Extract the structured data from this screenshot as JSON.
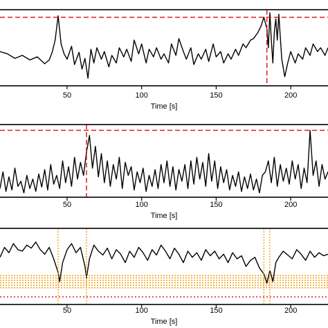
{
  "chart_data": [
    {
      "type": "line",
      "xlabel": "Time [s]",
      "xlim": [
        5,
        225
      ],
      "ylim": [
        0,
        1
      ],
      "xticks": [
        50,
        100,
        150,
        200
      ],
      "grid": false,
      "series": [
        {
          "color": "#000000",
          "x": [
            5,
            10,
            15,
            20,
            25,
            30,
            35,
            38,
            40,
            42,
            44,
            46,
            48,
            50,
            53,
            55,
            58,
            60,
            62,
            64,
            66,
            68,
            70,
            73,
            75,
            78,
            80,
            83,
            85,
            88,
            90,
            93,
            95,
            98,
            100,
            103,
            105,
            108,
            110,
            113,
            115,
            118,
            120,
            123,
            125,
            128,
            130,
            133,
            135,
            138,
            140,
            143,
            145,
            148,
            150,
            153,
            155,
            158,
            160,
            163,
            165,
            168,
            170,
            173,
            175,
            178,
            180,
            182,
            184,
            185,
            186,
            187,
            188,
            189,
            190,
            191,
            192,
            194,
            196,
            198,
            200,
            203,
            205,
            208,
            210,
            213,
            215,
            218,
            220,
            223,
            225
          ],
          "values": [
            0.45,
            0.42,
            0.36,
            0.4,
            0.34,
            0.38,
            0.29,
            0.34,
            0.44,
            0.6,
            0.92,
            0.55,
            0.42,
            0.35,
            0.52,
            0.28,
            0.44,
            0.22,
            0.36,
            0.1,
            0.48,
            0.3,
            0.5,
            0.35,
            0.45,
            0.25,
            0.4,
            0.3,
            0.5,
            0.38,
            0.48,
            0.32,
            0.6,
            0.42,
            0.55,
            0.3,
            0.48,
            0.38,
            0.5,
            0.35,
            0.42,
            0.3,
            0.55,
            0.4,
            0.62,
            0.45,
            0.35,
            0.5,
            0.28,
            0.42,
            0.35,
            0.48,
            0.32,
            0.55,
            0.38,
            0.45,
            0.3,
            0.42,
            0.35,
            0.48,
            0.4,
            0.55,
            0.5,
            0.6,
            0.62,
            0.7,
            0.78,
            0.9,
            0.75,
            0.5,
            0.96,
            0.6,
            0.3,
            0.7,
            0.88,
            0.6,
            0.94,
            0.35,
            0.12,
            0.3,
            0.45,
            0.3,
            0.42,
            0.35,
            0.5,
            0.4,
            0.55,
            0.45,
            0.5,
            0.4,
            0.5
          ]
        }
      ],
      "threshold_line": {
        "orientation": "horizontal",
        "value": 0.9,
        "color": "#e31a1c",
        "style": "dashed"
      },
      "event_lines": [
        {
          "orientation": "vertical",
          "x": 184,
          "color": "#e31a1c",
          "style": "dashed"
        }
      ]
    },
    {
      "type": "line",
      "xlabel": "Time [s]",
      "xlim": [
        5,
        225
      ],
      "ylim": [
        0,
        1
      ],
      "xticks": [
        50,
        100,
        150,
        200
      ],
      "grid": false,
      "series": [
        {
          "color": "#000000",
          "x": [
            5,
            7,
            9,
            11,
            13,
            15,
            17,
            19,
            21,
            23,
            25,
            27,
            29,
            31,
            33,
            35,
            37,
            39,
            41,
            43,
            45,
            47,
            49,
            51,
            53,
            55,
            57,
            59,
            61,
            63,
            65,
            67,
            69,
            71,
            73,
            75,
            77,
            79,
            81,
            83,
            85,
            87,
            89,
            91,
            93,
            95,
            97,
            99,
            101,
            103,
            105,
            107,
            109,
            111,
            113,
            115,
            117,
            119,
            121,
            123,
            125,
            127,
            129,
            131,
            133,
            135,
            137,
            139,
            141,
            143,
            145,
            147,
            149,
            151,
            153,
            155,
            157,
            159,
            161,
            163,
            165,
            167,
            169,
            171,
            173,
            175,
            177,
            179,
            181,
            183,
            185,
            187,
            189,
            191,
            193,
            195,
            197,
            199,
            201,
            203,
            205,
            207,
            209,
            211,
            213,
            215,
            217,
            219,
            221,
            223,
            225
          ],
          "values": [
            0.12,
            0.35,
            0.08,
            0.28,
            0.1,
            0.4,
            0.15,
            0.22,
            0.06,
            0.3,
            0.12,
            0.25,
            0.08,
            0.32,
            0.14,
            0.38,
            0.1,
            0.45,
            0.18,
            0.3,
            0.12,
            0.5,
            0.2,
            0.42,
            0.15,
            0.55,
            0.25,
            0.48,
            0.3,
            0.62,
            0.85,
            0.4,
            0.7,
            0.28,
            0.6,
            0.2,
            0.5,
            0.15,
            0.45,
            0.25,
            0.55,
            0.12,
            0.48,
            0.3,
            0.42,
            0.1,
            0.35,
            0.2,
            0.4,
            0.08,
            0.3,
            0.15,
            0.38,
            0.12,
            0.45,
            0.2,
            0.5,
            0.15,
            0.42,
            0.1,
            0.38,
            0.22,
            0.45,
            0.12,
            0.5,
            0.18,
            0.55,
            0.25,
            0.48,
            0.15,
            0.6,
            0.22,
            0.5,
            0.12,
            0.42,
            0.2,
            0.38,
            0.1,
            0.3,
            0.15,
            0.35,
            0.08,
            0.28,
            0.12,
            0.32,
            0.1,
            0.25,
            0.06,
            0.3,
            0.35,
            0.5,
            0.2,
            0.55,
            0.15,
            0.45,
            0.22,
            0.4,
            0.18,
            0.5,
            0.25,
            0.45,
            0.12,
            0.4,
            0.2,
            0.92,
            0.3,
            0.5,
            0.15,
            0.45,
            0.25,
            0.35
          ]
        }
      ],
      "threshold_line": {
        "orientation": "horizontal",
        "value": 0.92,
        "color": "#e31a1c",
        "style": "dashed"
      },
      "event_lines": [
        {
          "orientation": "vertical",
          "x": 63,
          "color": "#e31a1c",
          "style": "dashed"
        }
      ]
    },
    {
      "type": "line",
      "xlabel": "Time [s]",
      "xlim": [
        5,
        225
      ],
      "ylim": [
        0,
        1
      ],
      "xticks": [
        50,
        100,
        150,
        200
      ],
      "grid": false,
      "series": [
        {
          "color": "#000000",
          "x": [
            5,
            8,
            11,
            14,
            17,
            20,
            23,
            26,
            29,
            32,
            35,
            38,
            41,
            44,
            45,
            47,
            50,
            53,
            56,
            59,
            62,
            63,
            65,
            68,
            71,
            74,
            77,
            80,
            83,
            86,
            89,
            92,
            95,
            98,
            101,
            104,
            107,
            110,
            113,
            116,
            119,
            122,
            125,
            128,
            131,
            134,
            137,
            140,
            143,
            146,
            149,
            152,
            155,
            158,
            161,
            164,
            167,
            170,
            173,
            176,
            179,
            182,
            184,
            186,
            188,
            190,
            192,
            195,
            198,
            201,
            204,
            207,
            210,
            213,
            216,
            219,
            222,
            225
          ],
          "values": [
            0.62,
            0.75,
            0.68,
            0.8,
            0.72,
            0.7,
            0.78,
            0.74,
            0.82,
            0.72,
            0.66,
            0.75,
            0.6,
            0.42,
            0.3,
            0.55,
            0.72,
            0.8,
            0.68,
            0.75,
            0.5,
            0.35,
            0.6,
            0.78,
            0.7,
            0.65,
            0.74,
            0.6,
            0.72,
            0.66,
            0.55,
            0.7,
            0.62,
            0.75,
            0.68,
            0.58,
            0.72,
            0.65,
            0.78,
            0.7,
            0.6,
            0.74,
            0.66,
            0.55,
            0.7,
            0.62,
            0.68,
            0.58,
            0.72,
            0.64,
            0.7,
            0.6,
            0.66,
            0.55,
            0.68,
            0.6,
            0.64,
            0.5,
            0.58,
            0.62,
            0.48,
            0.4,
            0.28,
            0.45,
            0.3,
            0.55,
            0.62,
            0.7,
            0.65,
            0.6,
            0.72,
            0.66,
            0.58,
            0.7,
            0.62,
            0.68,
            0.64,
            0.66
          ]
        }
      ],
      "threshold_band": {
        "from": 0.22,
        "to": 0.38,
        "color": "#f5a623",
        "style": "dotted"
      },
      "threshold_line": {
        "orientation": "horizontal",
        "value": 0.1,
        "color": "#e31a1c",
        "style": "dotted"
      },
      "event_lines": [
        {
          "orientation": "vertical",
          "x": 44,
          "color": "#f5a623",
          "style": "dotted"
        },
        {
          "orientation": "vertical",
          "x": 63,
          "color": "#f5a623",
          "style": "dotted"
        },
        {
          "orientation": "vertical",
          "x": 182,
          "color": "#f5a623",
          "style": "dotted"
        },
        {
          "orientation": "vertical",
          "x": 186,
          "color": "#f5a623",
          "style": "dotted"
        }
      ]
    }
  ]
}
